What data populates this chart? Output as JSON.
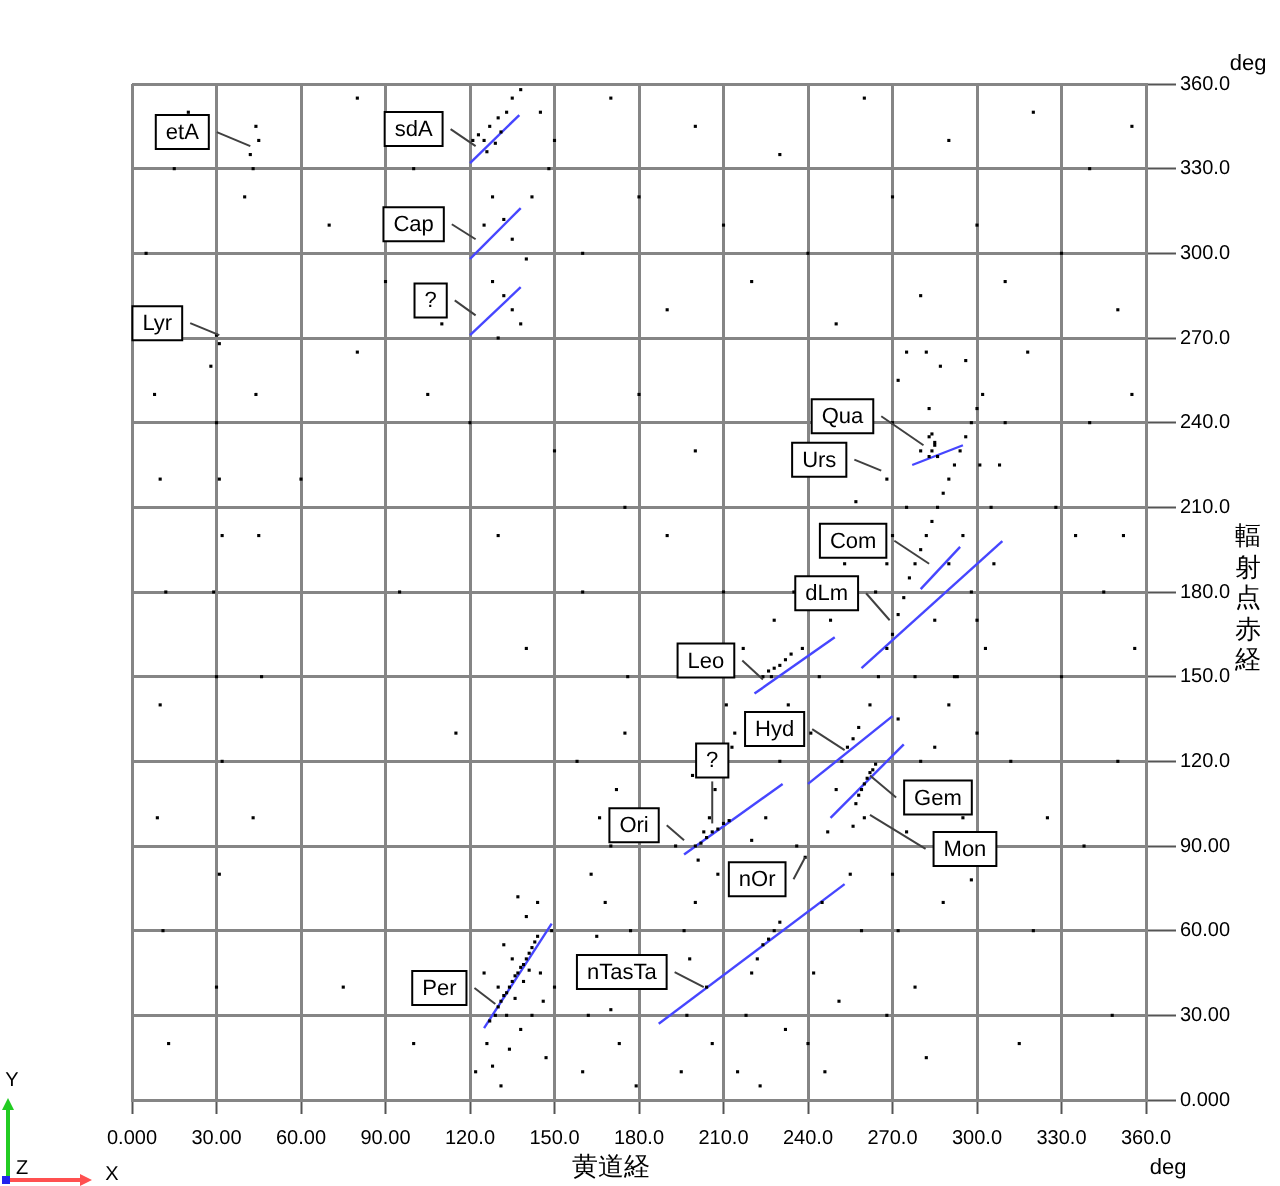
{
  "chart_data": {
    "type": "scatter",
    "xlabel": "黄道経",
    "ylabel": "輻射点赤経",
    "xlim": [
      0,
      360
    ],
    "ylim": [
      0,
      360
    ],
    "xticks": [
      {
        "value": 0,
        "label": "0.000"
      },
      {
        "value": 30,
        "label": "30.00"
      },
      {
        "value": 60,
        "label": "60.00"
      },
      {
        "value": 90,
        "label": "90.00"
      },
      {
        "value": 120,
        "label": "120.0"
      },
      {
        "value": 150,
        "label": "150.0"
      },
      {
        "value": 180,
        "label": "180.0"
      },
      {
        "value": 210,
        "label": "210.0"
      },
      {
        "value": 240,
        "label": "240.0"
      },
      {
        "value": 270,
        "label": "270.0"
      },
      {
        "value": 300,
        "label": "300.0"
      },
      {
        "value": 330,
        "label": "330.0"
      },
      {
        "value": 360,
        "label": "360.0"
      }
    ],
    "yticks": [
      {
        "value": 0,
        "label": "0.000"
      },
      {
        "value": 30,
        "label": "30.00"
      },
      {
        "value": 60,
        "label": "60.00"
      },
      {
        "value": 90,
        "label": "90.00"
      },
      {
        "value": 120,
        "label": "120.0"
      },
      {
        "value": 150,
        "label": "150.0"
      },
      {
        "value": 180,
        "label": "180.0"
      },
      {
        "value": 210,
        "label": "210.0"
      },
      {
        "value": 240,
        "label": "240.0"
      },
      {
        "value": 270,
        "label": "270.0"
      },
      {
        "value": 300,
        "label": "300.0"
      },
      {
        "value": 330,
        "label": "330.0"
      },
      {
        "value": 360,
        "label": "360.0"
      }
    ],
    "grid": true,
    "series": [
      {
        "color": "#000000",
        "marker": "square",
        "x": [
          127,
          129,
          130,
          131,
          132,
          133,
          134,
          135,
          136,
          137,
          138,
          139,
          140,
          141,
          142,
          143,
          144,
          133,
          136,
          139,
          141,
          130,
          135,
          145,
          126,
          128,
          131,
          134,
          138,
          142,
          146,
          147,
          125,
          122,
          140,
          144,
          137,
          132,
          149,
          150,
          160,
          162,
          165,
          168,
          170,
          172,
          175,
          173,
          170,
          177,
          179,
          166,
          163,
          176,
          158,
          195,
          197,
          198,
          200,
          201,
          203,
          205,
          207,
          213,
          196,
          204,
          206,
          208,
          211,
          199,
          193,
          200,
          202,
          204,
          206,
          208,
          210,
          212,
          215,
          218,
          220,
          222,
          224,
          226,
          228,
          230,
          220,
          225,
          230,
          233,
          217,
          228,
          235,
          223,
          232,
          236,
          214,
          227,
          224,
          226,
          228,
          230,
          232,
          234,
          238,
          240,
          242,
          245,
          247,
          250,
          252,
          254,
          256,
          258,
          244,
          248,
          253,
          257,
          241,
          255,
          259,
          246,
          251,
          258,
          259,
          260,
          261,
          262,
          263,
          257,
          264,
          260,
          256,
          262,
          265,
          268,
          270,
          272,
          274,
          276,
          278,
          280,
          282,
          284,
          286,
          288,
          290,
          292,
          294,
          296,
          298,
          300,
          302,
          270,
          268,
          270,
          272,
          275,
          280,
          283,
          287,
          290,
          295,
          298,
          300,
          303,
          305,
          308,
          285,
          278,
          272,
          293,
          306,
          310,
          282,
          275,
          264,
          268,
          285,
          286,
          284,
          296,
          301,
          283,
          284,
          285,
          283,
          270,
          275,
          280,
          285,
          290,
          295,
          300,
          272,
          278,
          288,
          298,
          268,
          282,
          292,
          315,
          320,
          325,
          330,
          335,
          340,
          345,
          350,
          355,
          318,
          328,
          338,
          348,
          352,
          312,
          356,
          5,
          15,
          20,
          40,
          45,
          42,
          43,
          44,
          70,
          80,
          90,
          100,
          110,
          150,
          160,
          170,
          180,
          190,
          200,
          210,
          220,
          230,
          240,
          250,
          260,
          270,
          280,
          290,
          300,
          310,
          320,
          330,
          340,
          350,
          355,
          121,
          123,
          125,
          127,
          130,
          133,
          126,
          129,
          131,
          135,
          138,
          128,
          132,
          135,
          140,
          125,
          128,
          132,
          135,
          138,
          130,
          145,
          148,
          142,
          8,
          10,
          12,
          10,
          9,
          11,
          13,
          28,
          30,
          31,
          32,
          29,
          30,
          32,
          31,
          30,
          45,
          44,
          46,
          43,
          60,
          75,
          80,
          95,
          105,
          100,
          115,
          30,
          31,
          130,
          150,
          160,
          140,
          120,
          180,
          190,
          200,
          210,
          175,
          239
        ],
        "values": [
          28,
          30,
          33,
          35,
          37,
          38,
          40,
          42,
          44,
          45,
          47,
          48,
          50,
          52,
          54,
          56,
          58,
          30,
          36,
          42,
          46,
          40,
          50,
          45,
          20,
          12,
          5,
          18,
          25,
          30,
          35,
          15,
          45,
          10,
          65,
          70,
          72,
          55,
          60,
          40,
          10,
          30,
          58,
          70,
          90,
          110,
          130,
          20,
          32,
          60,
          5,
          100,
          80,
          150,
          120,
          10,
          30,
          50,
          70,
          85,
          95,
          100,
          110,
          125,
          60,
          40,
          20,
          80,
          140,
          115,
          90,
          90,
          91,
          93,
          95,
          96,
          98,
          99,
          10,
          30,
          45,
          50,
          55,
          57,
          60,
          63,
          92,
          100,
          120,
          140,
          160,
          170,
          180,
          5,
          25,
          90,
          130,
          150,
          150,
          152,
          153,
          154,
          156,
          158,
          160,
          20,
          45,
          70,
          95,
          110,
          120,
          125,
          128,
          132,
          150,
          170,
          190,
          212,
          130,
          80,
          60,
          10,
          35,
          108,
          110,
          112,
          114,
          116,
          117,
          105,
          119,
          100,
          97,
          140,
          150,
          160,
          165,
          172,
          178,
          185,
          190,
          195,
          200,
          205,
          210,
          215,
          220,
          225,
          230,
          235,
          240,
          245,
          250,
          200,
          220,
          240,
          255,
          210,
          230,
          245,
          260,
          190,
          200,
          180,
          170,
          160,
          210,
          225,
          170,
          150,
          135,
          150,
          190,
          240,
          265,
          265,
          180,
          190,
          232,
          228,
          236,
          262,
          225,
          228,
          230,
          233,
          235,
          80,
          95,
          120,
          125,
          140,
          100,
          130,
          60,
          40,
          70,
          78,
          30,
          15,
          150,
          20,
          60,
          100,
          150,
          200,
          240,
          180,
          120,
          250,
          265,
          210,
          90,
          30,
          200,
          120,
          160,
          300,
          330,
          350,
          320,
          340,
          335,
          330,
          345,
          310,
          355,
          290,
          330,
          275,
          340,
          300,
          355,
          320,
          280,
          345,
          310,
          290,
          335,
          300,
          275,
          355,
          320,
          285,
          340,
          310,
          290,
          350,
          300,
          330,
          280,
          345,
          340,
          342,
          340,
          345,
          348,
          350,
          336,
          339,
          343,
          355,
          358,
          320,
          312,
          305,
          298,
          310,
          290,
          285,
          280,
          275,
          270,
          350,
          330,
          320,
          250,
          220,
          180,
          140,
          100,
          60,
          20,
          260,
          240,
          220,
          200,
          180,
          150,
          120,
          80,
          40,
          200,
          250,
          150,
          100,
          220,
          40,
          265,
          180,
          250,
          20,
          130,
          271,
          268,
          200,
          230,
          180,
          160,
          240,
          250,
          200,
          230,
          180,
          210,
          86
        ]
      },
      {
        "type": "line",
        "color": "#4646ff",
        "x": [
          120,
          137.5
        ],
        "values": [
          332,
          349
        ]
      },
      {
        "type": "line",
        "color": "#4646ff",
        "x": [
          120,
          138
        ],
        "values": [
          298,
          316
        ]
      },
      {
        "type": "line",
        "color": "#4646ff",
        "x": [
          120,
          138
        ],
        "values": [
          271,
          288
        ]
      },
      {
        "type": "line",
        "color": "#4646ff",
        "x": [
          277,
          295
        ],
        "values": [
          225,
          232
        ]
      },
      {
        "type": "line",
        "color": "#4646ff",
        "x": [
          280,
          294
        ],
        "values": [
          181,
          196
        ]
      },
      {
        "type": "line",
        "color": "#4646ff",
        "x": [
          259,
          309
        ],
        "values": [
          153,
          198
        ]
      },
      {
        "type": "line",
        "color": "#4646ff",
        "x": [
          221,
          249.5
        ],
        "values": [
          144,
          164
        ]
      },
      {
        "type": "line",
        "color": "#4646ff",
        "x": [
          240,
          270
        ],
        "values": [
          112,
          136
        ]
      },
      {
        "type": "line",
        "color": "#4646ff",
        "x": [
          248,
          274
        ],
        "values": [
          100,
          126
        ]
      },
      {
        "type": "line",
        "color": "#4646ff",
        "x": [
          196,
          231
        ],
        "values": [
          87,
          112
        ]
      },
      {
        "type": "line",
        "color": "#4646ff",
        "x": [
          187,
          253
        ],
        "values": [
          27,
          76.5
        ]
      },
      {
        "type": "line",
        "color": "#4646ff",
        "x": [
          125,
          149
        ],
        "values": [
          25.5,
          62.5
        ]
      }
    ],
    "annotations": [
      {
        "text": "etA",
        "x": 42,
        "y": 338
      },
      {
        "text": "sdA",
        "x": 122,
        "y": 338
      },
      {
        "text": "Cap",
        "x": 122,
        "y": 305
      },
      {
        "text": "?",
        "x": 122,
        "y": 278
      },
      {
        "text": "Lyr",
        "x": 31,
        "y": 271
      },
      {
        "text": "Qua",
        "x": 281,
        "y": 232
      },
      {
        "text": "Urs",
        "x": 266,
        "y": 223
      },
      {
        "text": "Com",
        "x": 283,
        "y": 190
      },
      {
        "text": "dLm",
        "x": 269,
        "y": 170
      },
      {
        "text": "Leo",
        "x": 224,
        "y": 149
      },
      {
        "text": "?",
        "x": 206,
        "y": 98
      },
      {
        "text": "Hyd",
        "x": 253,
        "y": 124
      },
      {
        "text": "Ori",
        "x": 196,
        "y": 92
      },
      {
        "text": "nOr",
        "x": 239,
        "y": 86
      },
      {
        "text": "Gem",
        "x": 262,
        "y": 115
      },
      {
        "text": "Mon",
        "x": 262,
        "y": 101
      },
      {
        "text": "nTasTa",
        "x": 203,
        "y": 40
      },
      {
        "text": "Per",
        "x": 129,
        "y": 34
      },
      "deg",
      "deg",
      "X",
      "Y",
      "Z"
    ]
  }
}
